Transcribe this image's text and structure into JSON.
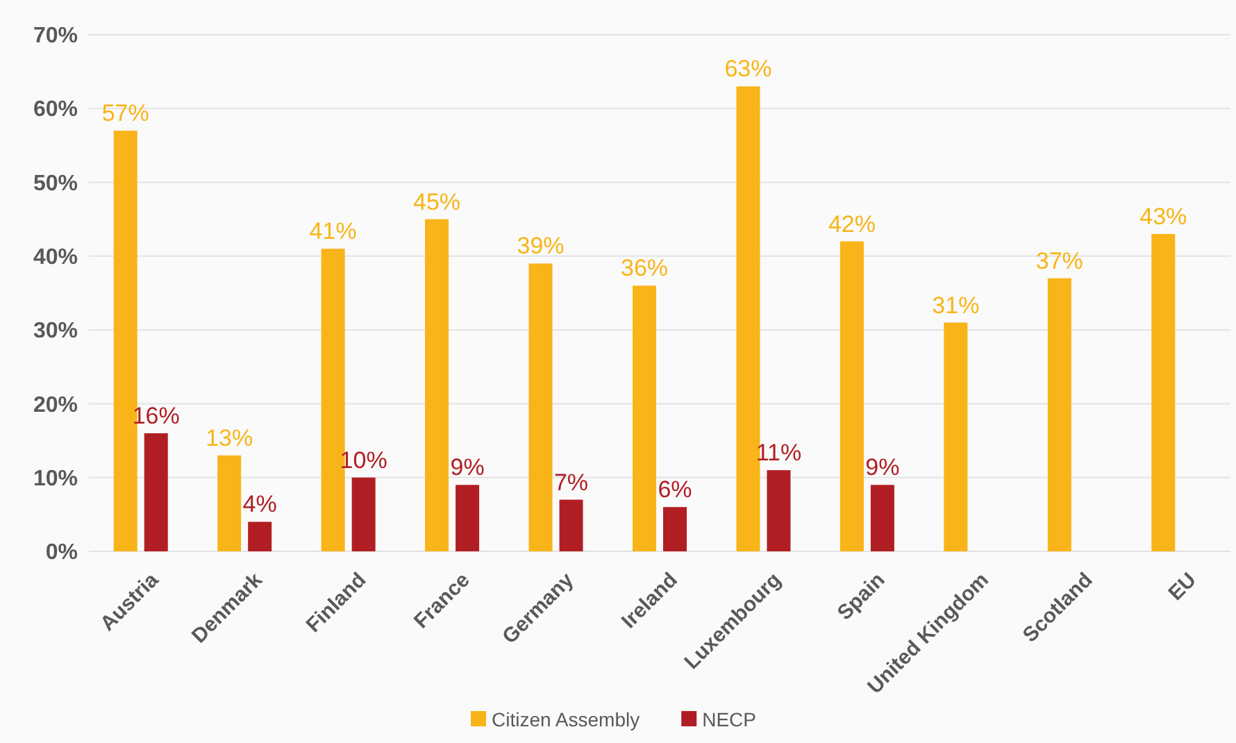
{
  "chart_data": {
    "type": "bar",
    "categories": [
      "Austria",
      "Denmark",
      "Finland",
      "France",
      "Germany",
      "Ireland",
      "Luxembourg",
      "Spain",
      "United Kingdom",
      "Scotland",
      "EU"
    ],
    "series": [
      {
        "name": "Citizen Assembly",
        "color": "#f8b418",
        "values": [
          57,
          13,
          41,
          45,
          39,
          36,
          63,
          42,
          31,
          37,
          43
        ],
        "value_labels": [
          "57%",
          "13%",
          "41%",
          "45%",
          "39%",
          "36%",
          "63%",
          "42%",
          "31%",
          "37%",
          "43%"
        ]
      },
      {
        "name": "NECP",
        "color": "#b01e23",
        "values": [
          16,
          4,
          10,
          9,
          7,
          6,
          11,
          9,
          null,
          null,
          null
        ],
        "value_labels": [
          "16%",
          "4%",
          "10%",
          "9%",
          "7%",
          "6%",
          "11%",
          "9%",
          null,
          null,
          null
        ]
      }
    ],
    "ylim": [
      0,
      70
    ],
    "yticks": [
      {
        "value": 0,
        "label": "0%"
      },
      {
        "value": 10,
        "label": "10%"
      },
      {
        "value": 20,
        "label": "20%"
      },
      {
        "value": 30,
        "label": "30%"
      },
      {
        "value": 40,
        "label": "40%"
      },
      {
        "value": 50,
        "label": "50%"
      },
      {
        "value": 60,
        "label": "60%"
      },
      {
        "value": 70,
        "label": "70%"
      }
    ],
    "grid": "y",
    "legend": "bottom"
  }
}
